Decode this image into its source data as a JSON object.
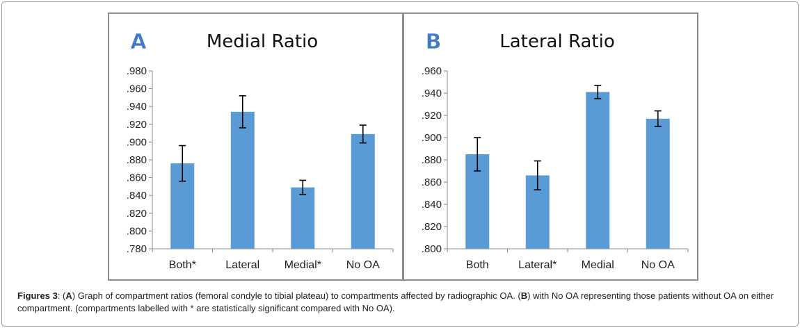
{
  "chart_data": [
    {
      "type": "bar",
      "panel_letter": "A",
      "title": "Medial Ratio",
      "categories": [
        "Both*",
        "Lateral",
        "Medial*",
        "No OA"
      ],
      "values": [
        0.876,
        0.934,
        0.849,
        0.909
      ],
      "error": [
        0.02,
        0.018,
        0.008,
        0.01
      ],
      "ylim": [
        0.78,
        0.98
      ],
      "yticks": [
        0.78,
        0.8,
        0.82,
        0.84,
        0.86,
        0.88,
        0.9,
        0.92,
        0.94,
        0.96,
        0.98
      ],
      "ytick_labels": [
        ".780",
        ".800",
        ".820",
        ".840",
        ".860",
        ".880",
        ".900",
        ".920",
        ".940",
        ".960",
        ".980"
      ],
      "xlabel": "",
      "ylabel": "",
      "bar_color": "#5b9bd5",
      "grid": false
    },
    {
      "type": "bar",
      "panel_letter": "B",
      "title": "Lateral Ratio",
      "categories": [
        "Both",
        "Lateral*",
        "Medial",
        "No OA"
      ],
      "values": [
        0.885,
        0.866,
        0.941,
        0.917
      ],
      "error": [
        0.015,
        0.013,
        0.006,
        0.007
      ],
      "ylim": [
        0.8,
        0.96
      ],
      "yticks": [
        0.8,
        0.82,
        0.84,
        0.86,
        0.88,
        0.9,
        0.92,
        0.94,
        0.96
      ],
      "ytick_labels": [
        ".800",
        ".820",
        ".840",
        ".860",
        ".880",
        ".900",
        ".920",
        ".940",
        ".960"
      ],
      "xlabel": "",
      "ylabel": "",
      "bar_color": "#5b9bd5",
      "grid": false
    }
  ],
  "caption": {
    "label": "Figures 3",
    "p1": ": (",
    "a": "A",
    "p2": ") Graph of compartment ratios (femoral condyle to tibial plateau) to compartments affected by radiographic OA. (",
    "b": "B",
    "p3": ") with No OA representing those patients without OA on either compartment. (compartments labelled with * are statistically significant compared with No OA)."
  }
}
